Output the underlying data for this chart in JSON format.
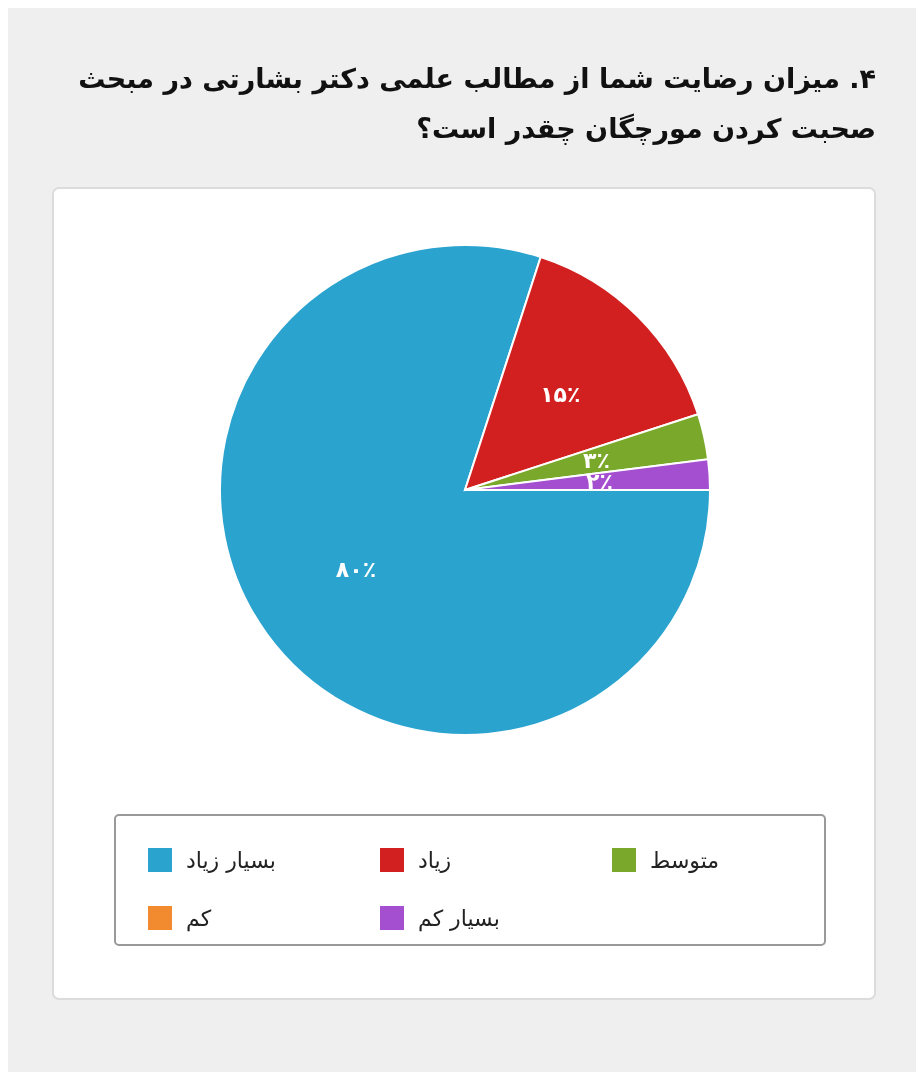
{
  "chart_data": {
    "type": "pie",
    "title": "۴. میزان رضایت شما از مطالب علمی دکتر بشارتی در مبحث صحبت کردن مورچگان چقدر است؟",
    "categories": [
      "بسیار زیاد",
      "زیاد",
      "متوسط",
      "کم",
      "بسیار کم"
    ],
    "values": [
      80,
      15,
      3,
      0,
      2
    ],
    "colors": [
      "#2ba3cf",
      "#d21f1f",
      "#7aa82b",
      "#f28b30",
      "#a44fcf"
    ],
    "value_labels": [
      "۸۰٪",
      "۱۵٪",
      "۳٪",
      null,
      "۲٪"
    ],
    "legend": "bottom"
  }
}
